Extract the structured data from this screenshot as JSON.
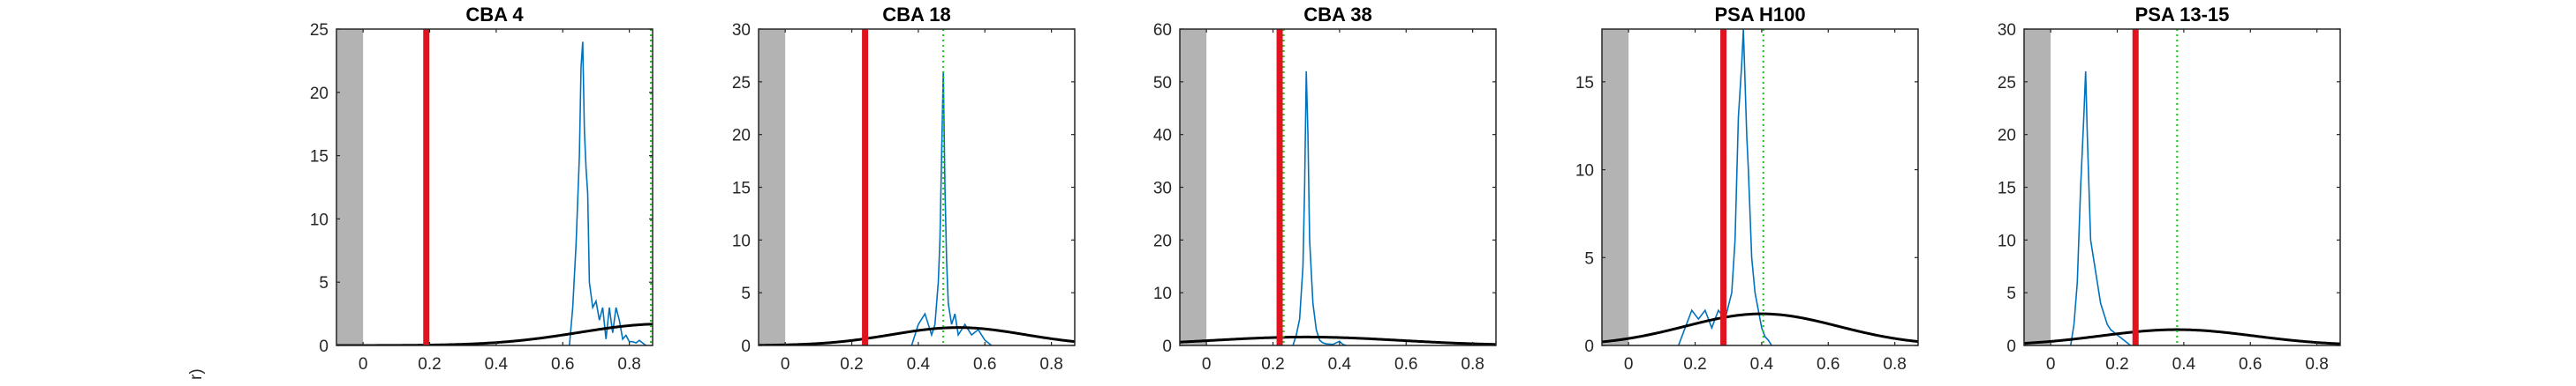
{
  "figure": {
    "ylabel_fragment": "r)"
  },
  "colors": {
    "axes": "#262626",
    "hist": "#0072BD",
    "red_line": "#E0141E",
    "green_dotted": "#22CC22",
    "gaussian": "#000000",
    "gray_band": "#B3B3B3"
  },
  "chart_data": [
    {
      "type": "line",
      "title": "CBA 4",
      "xlim": [
        -0.08,
        0.87
      ],
      "ylim": [
        0,
        25
      ],
      "xticks": [
        0,
        0.2,
        0.4,
        0.6,
        0.8
      ],
      "xtick_labels": [
        "0",
        "0.2",
        "0.4",
        "0.6",
        "0.8"
      ],
      "yticks": [
        0,
        5,
        10,
        15,
        20,
        25
      ],
      "ytick_labels": [
        "0",
        "5",
        "10",
        "15",
        "20",
        "25"
      ],
      "gray_band": [
        -0.08,
        0.0
      ],
      "red_line_x": 0.19,
      "green_line_x": 0.865,
      "gaussian": {
        "mean": 0.9,
        "sd": 0.25,
        "peak": 1.7
      },
      "hist": {
        "x": [
          0.62,
          0.63,
          0.64,
          0.65,
          0.655,
          0.66,
          0.665,
          0.67,
          0.675,
          0.68,
          0.69,
          0.7,
          0.71,
          0.72,
          0.73,
          0.74,
          0.75,
          0.76,
          0.77,
          0.78,
          0.79,
          0.8,
          0.81,
          0.82,
          0.83,
          0.84,
          0.85
        ],
        "y": [
          0,
          3,
          8,
          15,
          22,
          24,
          17,
          14,
          12,
          5,
          3,
          3.5,
          2,
          3,
          0.5,
          3,
          1,
          3,
          2,
          0.5,
          0.8,
          0.3,
          0.3,
          0.2,
          0.4,
          0.2,
          0
        ]
      }
    },
    {
      "type": "line",
      "title": "CBA 18",
      "xlim": [
        -0.08,
        0.87
      ],
      "ylim": [
        0,
        30
      ],
      "xticks": [
        0,
        0.2,
        0.4,
        0.6,
        0.8
      ],
      "xtick_labels": [
        "0",
        "0.2",
        "0.4",
        "0.6",
        "0.8"
      ],
      "yticks": [
        0,
        5,
        10,
        15,
        20,
        25,
        30
      ],
      "ytick_labels": [
        "0",
        "5",
        "10",
        "15",
        "20",
        "25",
        "30"
      ],
      "gray_band": [
        -0.08,
        0.0
      ],
      "red_line_x": 0.24,
      "green_line_x": 0.475,
      "gaussian": {
        "mean": 0.52,
        "sd": 0.2,
        "peak": 1.7
      },
      "hist": {
        "x": [
          0.38,
          0.4,
          0.42,
          0.43,
          0.44,
          0.45,
          0.46,
          0.465,
          0.47,
          0.475,
          0.48,
          0.485,
          0.49,
          0.5,
          0.51,
          0.52,
          0.54,
          0.56,
          0.58,
          0.6,
          0.62
        ],
        "y": [
          0,
          2,
          3,
          2,
          1,
          2,
          6,
          10,
          18,
          26,
          15,
          8,
          4,
          2,
          3,
          1,
          2,
          1,
          1.5,
          0.5,
          0
        ]
      }
    },
    {
      "type": "line",
      "title": "CBA 38",
      "xlim": [
        -0.08,
        0.87
      ],
      "ylim": [
        0,
        60
      ],
      "xticks": [
        0,
        0.2,
        0.4,
        0.6,
        0.8
      ],
      "xtick_labels": [
        "0",
        "0.2",
        "0.4",
        "0.6",
        "0.8"
      ],
      "yticks": [
        0,
        10,
        20,
        30,
        40,
        50,
        60
      ],
      "ytick_labels": [
        "0",
        "10",
        "20",
        "30",
        "40",
        "50",
        "60"
      ],
      "gray_band": [
        -0.08,
        0.0
      ],
      "red_line_x": 0.22,
      "green_line_x": 0.232,
      "gaussian": {
        "mean": 0.3,
        "sd": 0.28,
        "peak": 1.6
      },
      "hist": {
        "x": [
          0.26,
          0.27,
          0.28,
          0.29,
          0.295,
          0.3,
          0.305,
          0.31,
          0.32,
          0.33,
          0.34,
          0.35,
          0.36,
          0.38,
          0.4,
          0.41,
          0.42
        ],
        "y": [
          0,
          2,
          5,
          15,
          30,
          52,
          40,
          20,
          8,
          3,
          1,
          0.5,
          0.3,
          0.2,
          0.8,
          0.2,
          0
        ]
      }
    },
    {
      "type": "line",
      "title": "PSA H100",
      "xlim": [
        -0.08,
        0.87
      ],
      "ylim": [
        0,
        18
      ],
      "xticks": [
        0,
        0.2,
        0.4,
        0.6,
        0.8
      ],
      "xtick_labels": [
        "0",
        "0.2",
        "0.4",
        "0.6",
        "0.8"
      ],
      "yticks": [
        0,
        5,
        10,
        15
      ],
      "ytick_labels": [
        "0",
        "5",
        "10",
        "15"
      ],
      "gray_band": [
        -0.08,
        0.0
      ],
      "red_line_x": 0.285,
      "green_line_x": 0.405,
      "gaussian": {
        "mean": 0.4,
        "sd": 0.23,
        "peak": 1.8
      },
      "hist": {
        "x": [
          0.15,
          0.17,
          0.19,
          0.21,
          0.23,
          0.25,
          0.27,
          0.29,
          0.31,
          0.32,
          0.33,
          0.34,
          0.345,
          0.35,
          0.355,
          0.36,
          0.37,
          0.38,
          0.39,
          0.4,
          0.41,
          0.42,
          0.43
        ],
        "y": [
          0,
          1,
          2,
          1.5,
          2,
          1,
          2,
          1.5,
          3,
          6,
          13,
          16,
          18,
          15,
          12,
          10,
          5,
          3,
          2,
          1,
          0.5,
          0.3,
          0
        ]
      }
    },
    {
      "type": "line",
      "title": "PSA 13-15",
      "xlim": [
        -0.08,
        0.87
      ],
      "ylim": [
        0,
        30
      ],
      "xticks": [
        0,
        0.2,
        0.4,
        0.6,
        0.8
      ],
      "xtick_labels": [
        "0",
        "0.2",
        "0.4",
        "0.6",
        "0.8"
      ],
      "yticks": [
        0,
        5,
        10,
        15,
        20,
        25,
        30
      ],
      "ytick_labels": [
        "0",
        "5",
        "10",
        "15",
        "20",
        "25",
        "30"
      ],
      "gray_band": [
        -0.08,
        0.0
      ],
      "red_line_x": 0.255,
      "green_line_x": 0.38,
      "gaussian": {
        "mean": 0.38,
        "sd": 0.23,
        "peak": 1.5
      },
      "hist": {
        "x": [
          0.06,
          0.07,
          0.08,
          0.09,
          0.1,
          0.105,
          0.11,
          0.115,
          0.12,
          0.13,
          0.14,
          0.15,
          0.16,
          0.17,
          0.18,
          0.2,
          0.22,
          0.24
        ],
        "y": [
          0,
          2,
          6,
          15,
          22,
          26,
          20,
          15,
          10,
          8,
          6,
          4,
          3,
          2,
          1.5,
          1,
          0.5,
          0
        ]
      }
    }
  ]
}
